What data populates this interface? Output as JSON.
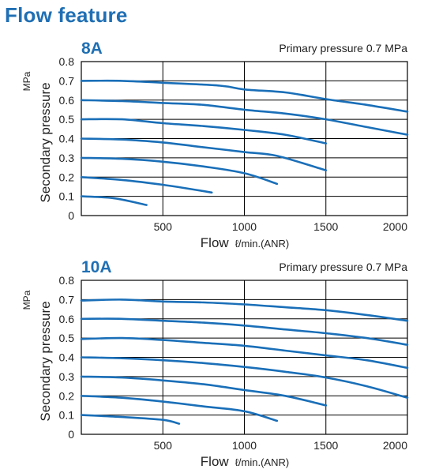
{
  "title": "Flow feature",
  "colors": {
    "accent": "#1f6fb4",
    "line": "#1a6fb8",
    "grid": "#000000"
  },
  "chart_data": [
    {
      "type": "line",
      "title": "8A",
      "subtitle": "Primary pressure 0.7 MPa",
      "xlabel": "Flow",
      "xunit": "ℓ/min.(ANR)",
      "ylabel": "Secondary pressure",
      "yunit": "MPa",
      "xlim": [
        0,
        2000
      ],
      "ylim": [
        0,
        0.8
      ],
      "xticks": [
        {
          "v": 500,
          "label": "500"
        },
        {
          "v": 1000,
          "label": "1000"
        },
        {
          "v": 1500,
          "label": "1500"
        },
        {
          "v": 2000,
          "label": "2000"
        }
      ],
      "yticks": [
        {
          "v": 0,
          "label": "0"
        },
        {
          "v": 0.1,
          "label": "0.1"
        },
        {
          "v": 0.2,
          "label": "0.2"
        },
        {
          "v": 0.3,
          "label": "0.3"
        },
        {
          "v": 0.4,
          "label": "0.4"
        },
        {
          "v": 0.5,
          "label": "0.5"
        },
        {
          "v": 0.6,
          "label": "0.6"
        },
        {
          "v": 0.7,
          "label": "0.7"
        },
        {
          "v": 0.8,
          "label": "0.8"
        }
      ],
      "grid": true,
      "series": [
        {
          "points": [
            [
              0,
              0.7
            ],
            [
              250,
              0.7
            ],
            [
              500,
              0.69
            ],
            [
              850,
              0.675
            ],
            [
              1000,
              0.655
            ],
            [
              1250,
              0.64
            ],
            [
              1500,
              0.605
            ],
            [
              1750,
              0.575
            ],
            [
              2000,
              0.54
            ]
          ]
        },
        {
          "points": [
            [
              0,
              0.6
            ],
            [
              250,
              0.595
            ],
            [
              500,
              0.585
            ],
            [
              750,
              0.575
            ],
            [
              1000,
              0.55
            ],
            [
              1250,
              0.53
            ],
            [
              1500,
              0.5
            ],
            [
              1750,
              0.46
            ],
            [
              2000,
              0.42
            ]
          ]
        },
        {
          "points": [
            [
              0,
              0.5
            ],
            [
              250,
              0.5
            ],
            [
              500,
              0.48
            ],
            [
              750,
              0.465
            ],
            [
              1000,
              0.445
            ],
            [
              1250,
              0.42
            ],
            [
              1500,
              0.375
            ]
          ]
        },
        {
          "points": [
            [
              0,
              0.4
            ],
            [
              250,
              0.395
            ],
            [
              500,
              0.38
            ],
            [
              700,
              0.36
            ],
            [
              1000,
              0.33
            ],
            [
              1200,
              0.31
            ],
            [
              1500,
              0.235
            ]
          ]
        },
        {
          "points": [
            [
              0,
              0.3
            ],
            [
              250,
              0.295
            ],
            [
              500,
              0.28
            ],
            [
              750,
              0.255
            ],
            [
              1000,
              0.22
            ],
            [
              1200,
              0.165
            ]
          ]
        },
        {
          "points": [
            [
              0,
              0.2
            ],
            [
              250,
              0.185
            ],
            [
              500,
              0.16
            ],
            [
              800,
              0.12
            ]
          ]
        },
        {
          "points": [
            [
              0,
              0.1
            ],
            [
              200,
              0.09
            ],
            [
              400,
              0.055
            ]
          ]
        }
      ]
    },
    {
      "type": "line",
      "title": "10A",
      "subtitle": "Primary pressure 0.7 MPa",
      "xlabel": "Flow",
      "xunit": "ℓ/min.(ANR)",
      "ylabel": "Secondary pressure",
      "yunit": "MPa",
      "xlim": [
        0,
        2000
      ],
      "ylim": [
        0,
        0.8
      ],
      "xticks": [
        {
          "v": 500,
          "label": "500"
        },
        {
          "v": 1000,
          "label": "1000"
        },
        {
          "v": 1500,
          "label": "1500"
        },
        {
          "v": 2000,
          "label": "2000"
        }
      ],
      "yticks": [
        {
          "v": 0,
          "label": "0"
        },
        {
          "v": 0.1,
          "label": "0.1"
        },
        {
          "v": 0.2,
          "label": "0.2"
        },
        {
          "v": 0.3,
          "label": "0.3"
        },
        {
          "v": 0.4,
          "label": "0.4"
        },
        {
          "v": 0.5,
          "label": "0.5"
        },
        {
          "v": 0.6,
          "label": "0.6"
        },
        {
          "v": 0.7,
          "label": "0.7"
        },
        {
          "v": 0.8,
          "label": "0.8"
        }
      ],
      "grid": true,
      "series": [
        {
          "points": [
            [
              0,
              0.695
            ],
            [
              250,
              0.7
            ],
            [
              500,
              0.69
            ],
            [
              750,
              0.685
            ],
            [
              1000,
              0.675
            ],
            [
              1250,
              0.66
            ],
            [
              1500,
              0.645
            ],
            [
              1750,
              0.62
            ],
            [
              2000,
              0.59
            ]
          ]
        },
        {
          "points": [
            [
              0,
              0.6
            ],
            [
              250,
              0.6
            ],
            [
              500,
              0.59
            ],
            [
              750,
              0.58
            ],
            [
              1000,
              0.565
            ],
            [
              1250,
              0.545
            ],
            [
              1500,
              0.525
            ],
            [
              1750,
              0.5
            ],
            [
              2000,
              0.465
            ]
          ]
        },
        {
          "points": [
            [
              0,
              0.495
            ],
            [
              250,
              0.5
            ],
            [
              500,
              0.49
            ],
            [
              750,
              0.475
            ],
            [
              1000,
              0.46
            ],
            [
              1250,
              0.435
            ],
            [
              1500,
              0.41
            ],
            [
              1750,
              0.385
            ],
            [
              2000,
              0.345
            ]
          ]
        },
        {
          "points": [
            [
              0,
              0.4
            ],
            [
              250,
              0.395
            ],
            [
              500,
              0.385
            ],
            [
              750,
              0.37
            ],
            [
              1000,
              0.35
            ],
            [
              1250,
              0.325
            ],
            [
              1500,
              0.295
            ],
            [
              1750,
              0.25
            ],
            [
              2000,
              0.19
            ]
          ]
        },
        {
          "points": [
            [
              0,
              0.3
            ],
            [
              250,
              0.295
            ],
            [
              500,
              0.28
            ],
            [
              750,
              0.26
            ],
            [
              1000,
              0.23
            ],
            [
              1250,
              0.2
            ],
            [
              1500,
              0.15
            ]
          ]
        },
        {
          "points": [
            [
              0,
              0.2
            ],
            [
              250,
              0.19
            ],
            [
              500,
              0.17
            ],
            [
              750,
              0.145
            ],
            [
              1000,
              0.12
            ],
            [
              1200,
              0.07
            ]
          ]
        },
        {
          "points": [
            [
              0,
              0.1
            ],
            [
              250,
              0.09
            ],
            [
              500,
              0.075
            ],
            [
              600,
              0.055
            ]
          ]
        }
      ]
    }
  ]
}
